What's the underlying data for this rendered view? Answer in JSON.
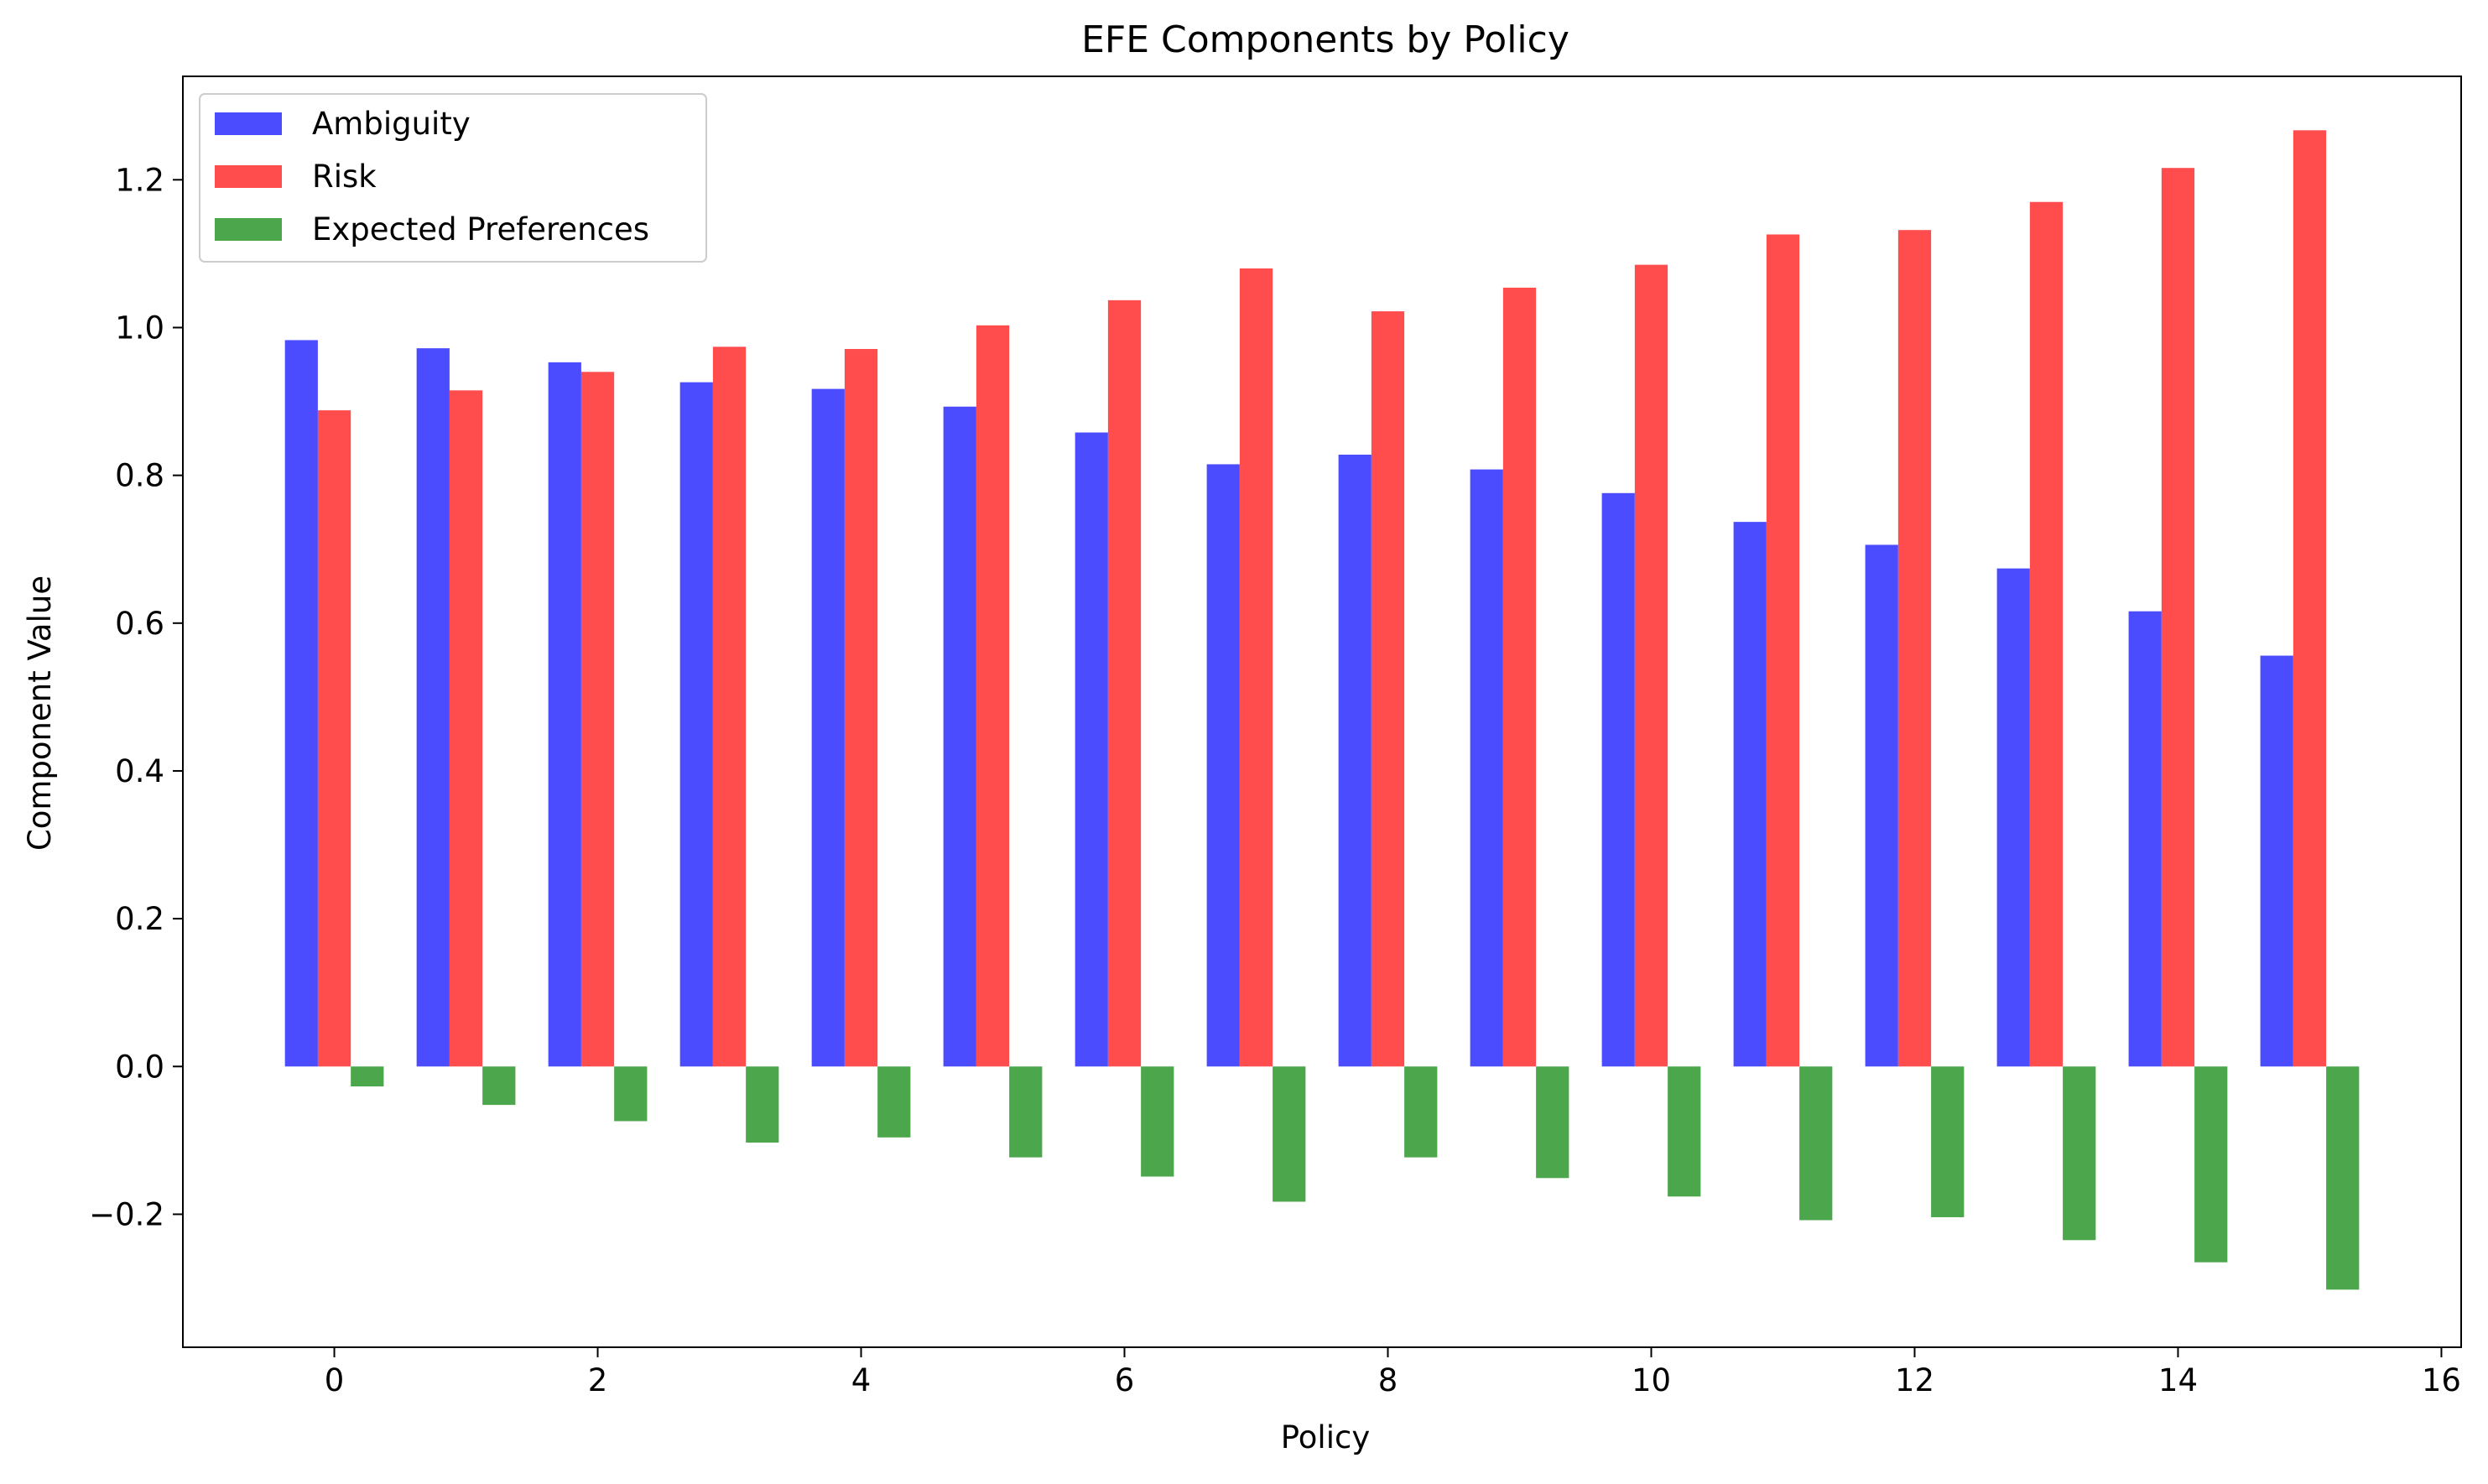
{
  "chart_data": {
    "type": "bar",
    "title": "EFE Components by Policy",
    "xlabel": "Policy",
    "ylabel": "Component Value",
    "x": [
      0,
      1,
      2,
      3,
      4,
      5,
      6,
      7,
      8,
      9,
      10,
      11,
      12,
      13,
      14,
      15
    ],
    "xlim": [
      -1.15,
      16.15
    ],
    "ylim": [
      -0.38,
      1.34
    ],
    "xticks": [
      0,
      2,
      4,
      6,
      8,
      10,
      12,
      14,
      16
    ],
    "xtick_labels": [
      "0",
      "2",
      "4",
      "6",
      "8",
      "10",
      "12",
      "14",
      "16"
    ],
    "yticks": [
      -0.2,
      0.0,
      0.2,
      0.4,
      0.6,
      0.8,
      1.0,
      1.2
    ],
    "ytick_labels": [
      "−0.2",
      "0.0",
      "0.2",
      "0.4",
      "0.6",
      "0.8",
      "1.0",
      "1.2"
    ],
    "grid": false,
    "legend_position": "top-left",
    "series": [
      {
        "name": "Ambiguity",
        "color": "#4c4cff",
        "values": [
          0.983,
          0.972,
          0.953,
          0.926,
          0.917,
          0.893,
          0.858,
          0.815,
          0.828,
          0.808,
          0.776,
          0.737,
          0.706,
          0.674,
          0.616,
          0.556
        ]
      },
      {
        "name": "Risk",
        "color": "#ff4c4c",
        "values": [
          0.888,
          0.915,
          0.94,
          0.974,
          0.971,
          1.003,
          1.037,
          1.08,
          1.022,
          1.054,
          1.085,
          1.126,
          1.132,
          1.17,
          1.216,
          1.267
        ]
      },
      {
        "name": "Expected Preferences",
        "color": "#4ca64c",
        "values": [
          -0.027,
          -0.052,
          -0.074,
          -0.103,
          -0.096,
          -0.123,
          -0.149,
          -0.183,
          -0.123,
          -0.151,
          -0.176,
          -0.208,
          -0.204,
          -0.235,
          -0.265,
          -0.302
        ]
      }
    ]
  }
}
